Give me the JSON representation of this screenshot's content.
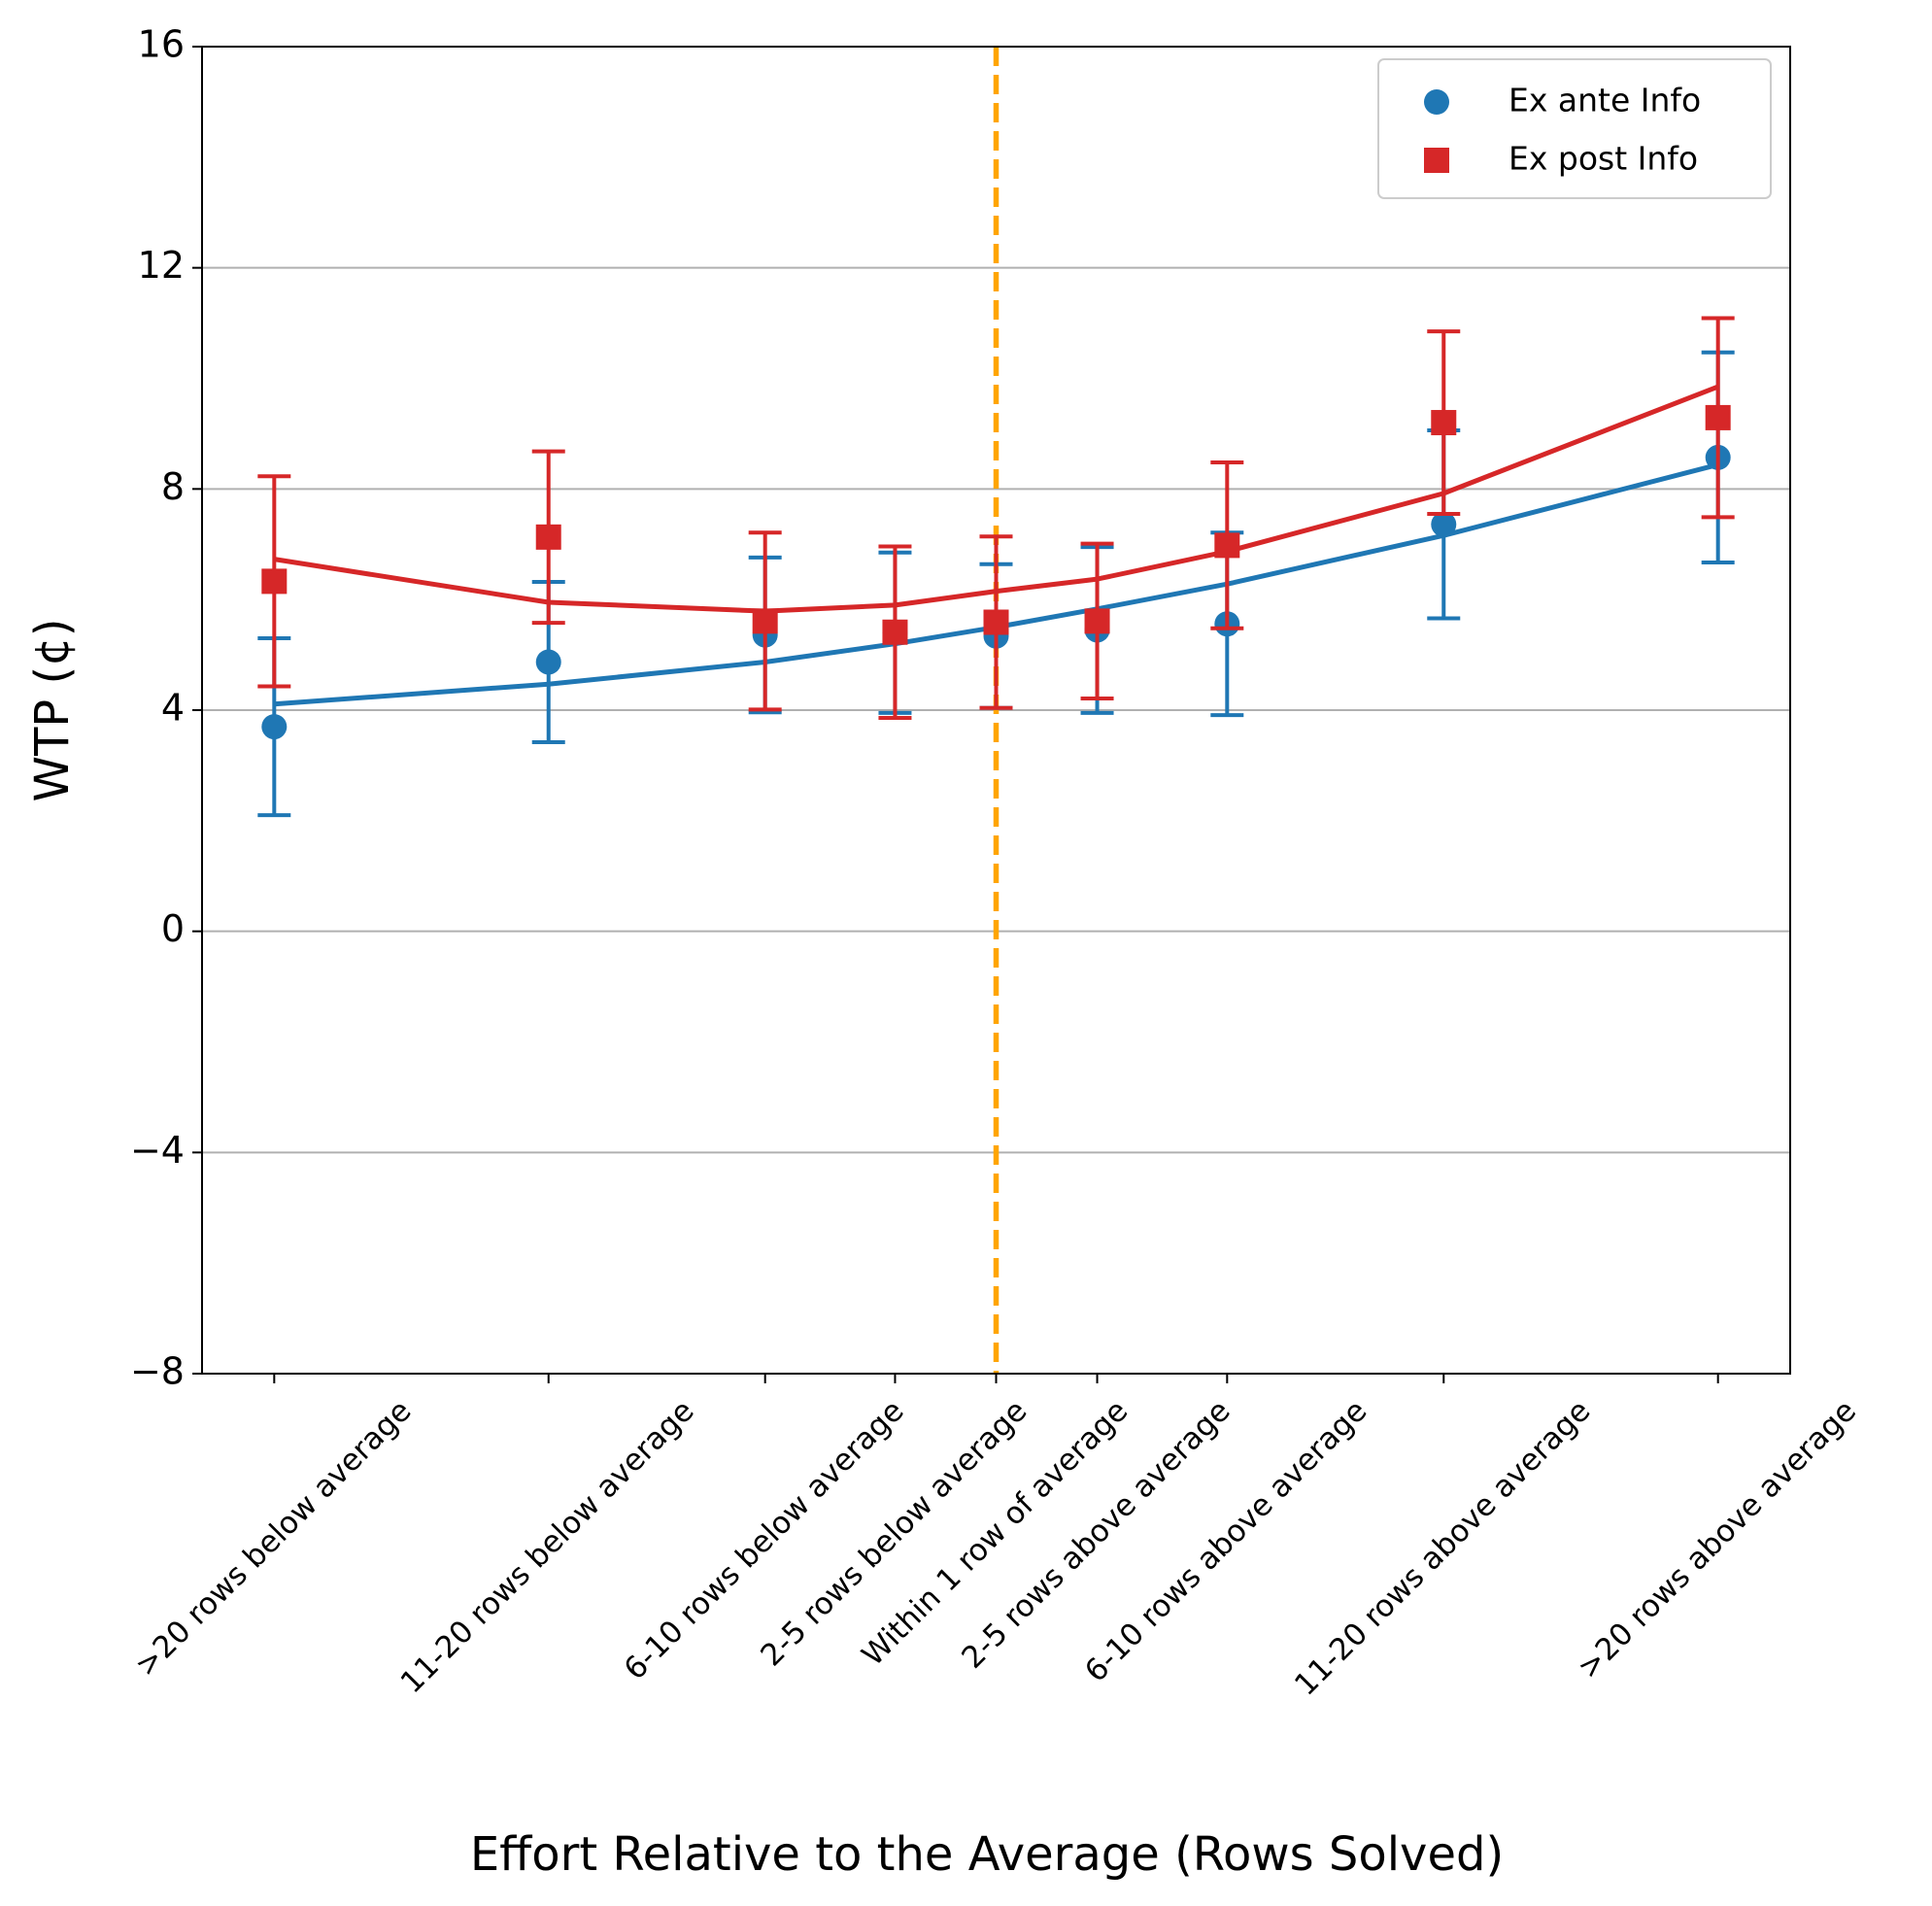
{
  "chart_data": {
    "type": "scatter",
    "x_label": "Effort Relative to the Average (Rows Solved)",
    "y_label": "WTP (¢)",
    "x": [
      -25,
      -15.5,
      -8,
      -3.5,
      0,
      3.5,
      8,
      15.5,
      25
    ],
    "xlim": [
      -27.5,
      27.5
    ],
    "xticks": [
      {
        "value": -25,
        "label": ">20 rows below average"
      },
      {
        "value": -15.5,
        "label": "11-20 rows below average"
      },
      {
        "value": -8,
        "label": "6-10 rows below average"
      },
      {
        "value": -3.5,
        "label": "2-5 rows below average"
      },
      {
        "value": 0,
        "label": "Within 1 row of average"
      },
      {
        "value": 3.5,
        "label": "2-5 rows above average"
      },
      {
        "value": 8,
        "label": "6-10 rows above average"
      },
      {
        "value": 15.5,
        "label": "11-20 rows above average"
      },
      {
        "value": 25,
        "label": ">20 rows above average"
      }
    ],
    "ylim": [
      -8,
      16
    ],
    "yticks": [
      {
        "value": -8,
        "label": "−8"
      },
      {
        "value": -4,
        "label": "−4"
      },
      0,
      4,
      8,
      12,
      16
    ],
    "grid": "y",
    "vline": {
      "x": 0,
      "color": "#ffa500"
    },
    "legend": "upper right",
    "series": [
      {
        "name": "Ex ante Info",
        "color": "#1f77b4",
        "marker": "circle",
        "values": [
          3.7,
          4.87,
          5.36,
          5.4,
          5.34,
          5.45,
          5.56,
          7.36,
          8.57
        ],
        "errors": [
          1.6,
          1.45,
          1.4,
          1.45,
          1.3,
          1.5,
          1.65,
          1.7,
          1.9
        ],
        "fit": [
          4.11,
          4.47,
          4.87,
          5.2,
          5.5,
          5.83,
          6.28,
          7.16,
          8.44
        ]
      },
      {
        "name": "Ex post Info",
        "color": "#d62728",
        "marker": "square",
        "values": [
          6.33,
          7.13,
          5.61,
          5.41,
          5.59,
          5.61,
          6.98,
          9.2,
          9.29
        ],
        "errors": [
          1.9,
          1.55,
          1.6,
          1.55,
          1.55,
          1.4,
          1.5,
          1.65,
          1.8
        ],
        "fit": [
          6.73,
          5.95,
          5.79,
          5.9,
          6.15,
          6.37,
          6.87,
          7.92,
          9.85
        ]
      }
    ]
  }
}
